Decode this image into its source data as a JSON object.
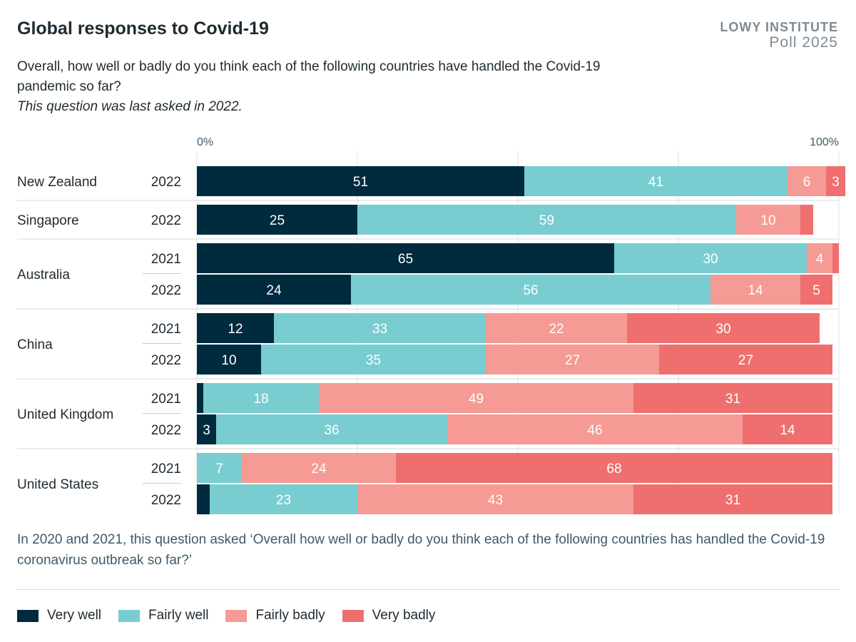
{
  "header": {
    "title": "Global responses to Covid-19",
    "brand_line1": "LOWY INSTITUTE",
    "brand_line2": "Poll 2025",
    "question": "Overall, how well or badly do you think each of the following countries have handled the Covid-19 pandemic so far?",
    "note": "This question was last asked in 2022."
  },
  "footnote": "In 2020 and 2021, this question asked ‘Overall how well or badly do you think each of the following countries has handled the Covid-19 coronavirus outbreak so far?’",
  "colors": {
    "very_well": "#002a3e",
    "fairly_well": "#79cdd1",
    "fairly_badly": "#f59a94",
    "very_badly": "#ef6f6f"
  },
  "chart_data": {
    "type": "bar",
    "orientation": "horizontal-stacked",
    "xlim": [
      0,
      100
    ],
    "x_tick_labels": [
      "0%",
      "100%"
    ],
    "series": [
      {
        "name": "Very well",
        "color_key": "very_well"
      },
      {
        "name": "Fairly well",
        "color_key": "fairly_well"
      },
      {
        "name": "Fairly badly",
        "color_key": "fairly_badly"
      },
      {
        "name": "Very badly",
        "color_key": "very_badly"
      }
    ],
    "groups": [
      {
        "country": "New Zealand",
        "rows": [
          {
            "year": "2022",
            "values": [
              51,
              41,
              6,
              3
            ]
          }
        ]
      },
      {
        "country": "Singapore",
        "rows": [
          {
            "year": "2022",
            "values": [
              25,
              59,
              10,
              2
            ]
          }
        ]
      },
      {
        "country": "Australia",
        "rows": [
          {
            "year": "2021",
            "values": [
              65,
              30,
              4,
              1
            ]
          },
          {
            "year": "2022",
            "values": [
              24,
              56,
              14,
              5
            ]
          }
        ]
      },
      {
        "country": "China",
        "rows": [
          {
            "year": "2021",
            "values": [
              12,
              33,
              22,
              30
            ]
          },
          {
            "year": "2022",
            "values": [
              10,
              35,
              27,
              27
            ]
          }
        ]
      },
      {
        "country": "United Kingdom",
        "rows": [
          {
            "year": "2021",
            "values": [
              1,
              18,
              49,
              31
            ]
          },
          {
            "year": "2022",
            "values": [
              3,
              36,
              46,
              14
            ]
          }
        ]
      },
      {
        "country": "United States",
        "rows": [
          {
            "year": "2021",
            "values": [
              0,
              7,
              24,
              68
            ]
          },
          {
            "year": "2022",
            "values": [
              2,
              23,
              43,
              31
            ]
          }
        ]
      }
    ],
    "legend_position": "bottom"
  }
}
